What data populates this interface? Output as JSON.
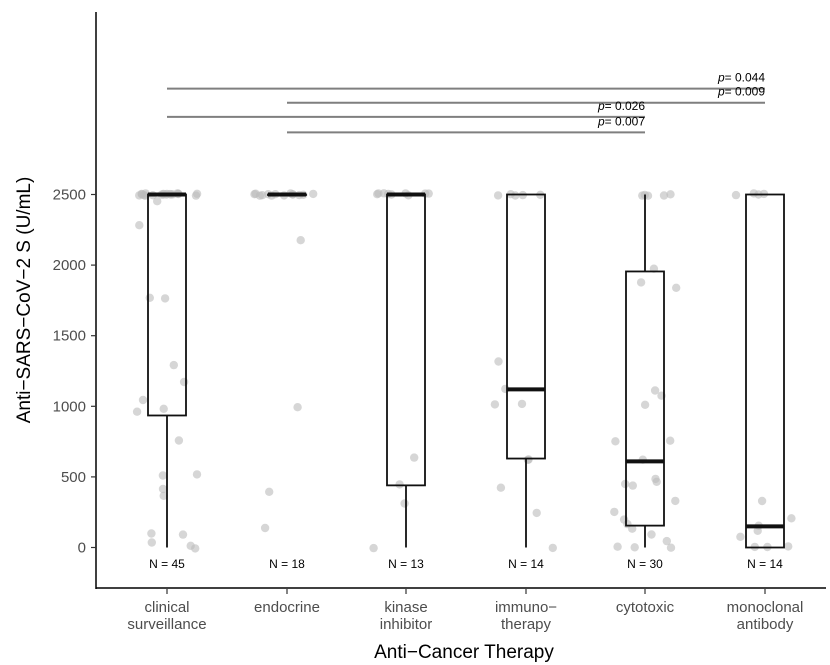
{
  "chart_data": {
    "type": "box",
    "xlabel": "Anti−Cancer Therapy",
    "ylabel": "Anti−SARS−CoV−2 S (U/mL)",
    "ylim": [
      -110,
      3400
    ],
    "yticks": [
      0,
      500,
      1000,
      1500,
      2000,
      2500
    ],
    "grid": false,
    "categories": [
      [
        "clinical",
        "surveillance"
      ],
      [
        "endocrine"
      ],
      [
        "kinase",
        "inhibitor"
      ],
      [
        "immuno−",
        "therapy"
      ],
      [
        "cytotoxic"
      ],
      [
        "monoclonal",
        "antibody"
      ]
    ],
    "n_labels": [
      "N = 45",
      "N = 18",
      "N = 13",
      "N = 14",
      "N = 30",
      "N = 14"
    ],
    "boxes": [
      {
        "min": 0,
        "q1": 935,
        "median": 2500,
        "q3": 2500,
        "max": 2500
      },
      {
        "min": 2500,
        "q1": 2500,
        "median": 2500,
        "q3": 2500,
        "max": 2500
      },
      {
        "min": 0,
        "q1": 440,
        "median": 2500,
        "q3": 2500,
        "max": 2500
      },
      {
        "min": 0,
        "q1": 630,
        "median": 1120,
        "q3": 2500,
        "max": 2500
      },
      {
        "min": 0,
        "q1": 155,
        "median": 610,
        "q3": 1955,
        "max": 2500
      },
      {
        "min": 0,
        "q1": 0,
        "median": 150,
        "q3": 2500,
        "max": 2500
      }
    ],
    "points": [
      {
        "group": 0,
        "y": [
          2500,
          2500,
          2500,
          2500,
          2500,
          2500,
          2500,
          2500,
          2500,
          2500,
          2500,
          2500,
          2500,
          2500,
          2500,
          2500,
          2500,
          2500,
          2500,
          2500,
          2450,
          2290,
          1775,
          1760,
          1290,
          1175,
          1040,
          975,
          960,
          760,
          515,
          510,
          420,
          365,
          95,
          85,
          40,
          20,
          0
        ]
      },
      {
        "group": 1,
        "y": [
          2500,
          2500,
          2500,
          2500,
          2500,
          2500,
          2500,
          2500,
          2500,
          2500,
          2500,
          2500,
          2500,
          2500,
          2180,
          1000,
          400,
          130
        ]
      },
      {
        "group": 2,
        "y": [
          2500,
          2500,
          2500,
          2500,
          2500,
          2500,
          2500,
          2500,
          2500,
          630,
          440,
          310,
          0
        ]
      },
      {
        "group": 3,
        "y": [
          2500,
          2500,
          2500,
          2500,
          2500,
          1310,
          1120,
          1015,
          1015,
          630,
          620,
          430,
          245,
          0
        ]
      },
      {
        "group": 4,
        "y": [
          2500,
          2500,
          2500,
          2500,
          2500,
          1980,
          1870,
          1840,
          1110,
          1080,
          1010,
          760,
          750,
          630,
          480,
          460,
          450,
          430,
          330,
          250,
          200,
          170,
          140,
          90,
          40,
          0,
          0,
          0
        ]
      },
      {
        "group": 5,
        "y": [
          2500,
          2500,
          2500,
          2500,
          330,
          200,
          150,
          110,
          80,
          0,
          0,
          0
        ]
      }
    ],
    "comparisons": [
      {
        "from": 0,
        "to": 5,
        "y": 3250,
        "label": "0.044"
      },
      {
        "from": 1,
        "to": 5,
        "y": 3150,
        "label": "0.009"
      },
      {
        "from": 0,
        "to": 4,
        "y": 3050,
        "label": "0.026"
      },
      {
        "from": 1,
        "to": 4,
        "y": 2940,
        "label": "0.007"
      }
    ],
    "p_prefix": "p",
    "p_equals": "= "
  }
}
